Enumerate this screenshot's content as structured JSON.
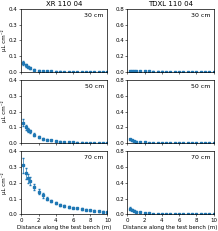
{
  "chart_data": [
    {
      "type": "scatter",
      "title": "XR 110 04",
      "annotation": "30 cm",
      "ylabel": "μL cm⁻²",
      "x": [
        0.25,
        0.5,
        0.75,
        1.0,
        1.5,
        2.0,
        2.5,
        3.0,
        3.5,
        4.0,
        4.5,
        5.0,
        5.5,
        6.0,
        6.5,
        7.0,
        7.5,
        8.0,
        8.5,
        9.0,
        9.5,
        10.0
      ],
      "values": [
        0.055,
        0.042,
        0.033,
        0.025,
        0.014,
        0.009,
        0.006,
        0.004,
        0.003,
        0.002,
        0.002,
        0.001,
        0.001,
        0.001,
        0.001,
        0.001,
        0.001,
        0.001,
        0.001,
        0.001,
        0.001,
        0.001
      ],
      "errors": [
        0.012,
        0.009,
        0.007,
        0.005,
        0.003,
        0.002,
        0.001,
        0.001,
        0.001,
        0.001,
        0.001,
        0.0005,
        0.0005,
        0.0005,
        0.0005,
        0.0005,
        0.0005,
        0.0005,
        0.0005,
        0.0005,
        0.0005,
        0.0005
      ],
      "xlim": [
        0,
        10
      ],
      "xticks": [
        0,
        2,
        4,
        6,
        8,
        10
      ],
      "ylim": [
        0,
        0.4
      ],
      "yticks": [
        {
          "value": 0,
          "label": "0.0"
        },
        0.1,
        0.2,
        0.3,
        0.4
      ],
      "marker": "square",
      "line_style": "none",
      "tick_labels": "y"
    },
    {
      "type": "scatter",
      "title": "TDXL 110 04",
      "annotation": "30 cm",
      "x": [
        0.25,
        0.5,
        0.75,
        1.0,
        1.5,
        2.0,
        2.5,
        3.0,
        3.5,
        4.0,
        4.5,
        5.0,
        5.5,
        6.0,
        6.5,
        7.0,
        7.5,
        8.0,
        8.5,
        9.0,
        9.5,
        10.0
      ],
      "values": [
        0.01,
        0.009,
        0.008,
        0.007,
        0.007,
        0.006,
        0.006,
        0.005,
        0.005,
        0.005,
        0.004,
        0.004,
        0.004,
        0.004,
        0.003,
        0.003,
        0.003,
        0.003,
        0.003,
        0.003,
        0.003,
        0.003
      ],
      "errors": [
        0.002,
        0.002,
        0.001,
        0.001,
        0.001,
        0.001,
        0.001,
        0.001,
        0.001,
        0.001,
        0.001,
        0.001,
        0.001,
        0.001,
        0.001,
        0.001,
        0.001,
        0.001,
        0.001,
        0.001,
        0.001,
        0.001
      ],
      "xlim": [
        0,
        10
      ],
      "xticks": [
        0,
        2,
        4,
        6,
        8,
        10
      ],
      "ylim": [
        0,
        0.8
      ],
      "yticks": [
        {
          "value": 0,
          "label": "0.0"
        },
        0.2,
        0.4,
        0.6,
        0.8
      ],
      "marker": "square",
      "line_style": "none",
      "tick_labels": "y"
    },
    {
      "type": "scatter",
      "annotation": "50 cm",
      "ylabel": "μL cm⁻²",
      "x": [
        0.25,
        0.5,
        0.75,
        1.0,
        1.5,
        2.0,
        2.5,
        3.0,
        3.5,
        4.0,
        4.5,
        5.0,
        5.5,
        6.0,
        6.5,
        7.0,
        7.5,
        8.0,
        8.5,
        9.0,
        9.5,
        10.0
      ],
      "values": [
        0.13,
        0.1,
        0.085,
        0.075,
        0.055,
        0.038,
        0.028,
        0.022,
        0.018,
        0.013,
        0.01,
        0.008,
        0.007,
        0.005,
        0.004,
        0.004,
        0.003,
        0.003,
        0.003,
        0.002,
        0.002,
        0.002
      ],
      "errors": [
        0.022,
        0.016,
        0.013,
        0.011,
        0.009,
        0.006,
        0.005,
        0.004,
        0.003,
        0.002,
        0.002,
        0.002,
        0.001,
        0.001,
        0.001,
        0.001,
        0.001,
        0.001,
        0.001,
        0.001,
        0.001,
        0.001
      ],
      "xlim": [
        0,
        10
      ],
      "xticks": [
        0,
        2,
        4,
        6,
        8,
        10
      ],
      "ylim": [
        0,
        0.4
      ],
      "yticks": [
        {
          "value": 0,
          "label": "0.0"
        },
        0.1,
        0.2,
        0.3,
        0.4
      ],
      "marker": "square",
      "line_style": "none",
      "tick_labels": "y"
    },
    {
      "type": "scatter",
      "annotation": "50 cm",
      "x": [
        0.25,
        0.5,
        0.75,
        1.0,
        1.5,
        2.0,
        2.5,
        3.0,
        3.5,
        4.0,
        4.5,
        5.0,
        5.5,
        6.0,
        6.5,
        7.0,
        7.5,
        8.0,
        8.5,
        9.0,
        9.5,
        10.0
      ],
      "values": [
        0.048,
        0.038,
        0.028,
        0.02,
        0.013,
        0.009,
        0.006,
        0.005,
        0.004,
        0.003,
        0.002,
        0.002,
        0.002,
        0.001,
        0.001,
        0.001,
        0.001,
        0.001,
        0.001,
        0.001,
        0.001,
        0.001
      ],
      "errors": [
        0.009,
        0.007,
        0.005,
        0.004,
        0.003,
        0.002,
        0.001,
        0.001,
        0.001,
        0.001,
        0.001,
        0.001,
        0.001,
        0.0005,
        0.0005,
        0.0005,
        0.0005,
        0.0005,
        0.0005,
        0.0005,
        0.0005,
        0.0005
      ],
      "xlim": [
        0,
        10
      ],
      "xticks": [
        0,
        2,
        4,
        6,
        8,
        10
      ],
      "ylim": [
        0,
        0.8
      ],
      "yticks": [
        {
          "value": 0,
          "label": "0.0"
        },
        0.2,
        0.4,
        0.6,
        0.8
      ],
      "marker": "square",
      "line_style": "none",
      "tick_labels": "y"
    },
    {
      "type": "scatter",
      "annotation": "70 cm",
      "ylabel": "μL cm⁻²",
      "xlabel": "Distance along the test bench (m)",
      "x": [
        0.25,
        0.5,
        0.75,
        1.0,
        1.5,
        2.0,
        2.5,
        3.0,
        3.5,
        4.0,
        4.5,
        5.0,
        5.5,
        6.0,
        6.5,
        7.0,
        7.5,
        8.0,
        8.5,
        9.0,
        9.5,
        10.0
      ],
      "values": [
        0.31,
        0.26,
        0.23,
        0.21,
        0.175,
        0.145,
        0.12,
        0.1,
        0.085,
        0.072,
        0.062,
        0.055,
        0.048,
        0.043,
        0.038,
        0.034,
        0.03,
        0.027,
        0.024,
        0.02,
        0.017,
        0.014
      ],
      "errors": [
        0.045,
        0.035,
        0.028,
        0.024,
        0.019,
        0.015,
        0.013,
        0.011,
        0.009,
        0.008,
        0.007,
        0.006,
        0.006,
        0.005,
        0.005,
        0.004,
        0.004,
        0.004,
        0.003,
        0.003,
        0.003,
        0.002
      ],
      "xlim": [
        0,
        10
      ],
      "xticks": [
        0,
        2,
        4,
        6,
        8,
        10
      ],
      "ylim": [
        0,
        0.4
      ],
      "yticks": [
        {
          "value": 0,
          "label": "0.0"
        },
        0.1,
        0.2,
        0.3,
        0.4
      ],
      "marker": "square",
      "line_style": "none"
    },
    {
      "type": "scatter",
      "annotation": "70 cm",
      "xlabel": "Distance along the test bench (m)",
      "x": [
        0.25,
        0.5,
        0.75,
        1.0,
        1.5,
        2.0,
        2.5,
        3.0,
        3.5,
        4.0,
        4.5,
        5.0,
        5.5,
        6.0,
        6.5,
        7.0,
        7.5,
        8.0,
        8.5,
        9.0,
        9.5,
        10.0
      ],
      "values": [
        0.075,
        0.06,
        0.048,
        0.037,
        0.026,
        0.018,
        0.013,
        0.009,
        0.007,
        0.005,
        0.004,
        0.003,
        0.003,
        0.002,
        0.002,
        0.002,
        0.001,
        0.001,
        0.001,
        0.001,
        0.001,
        0.001
      ],
      "errors": [
        0.013,
        0.01,
        0.008,
        0.006,
        0.005,
        0.003,
        0.002,
        0.002,
        0.001,
        0.001,
        0.001,
        0.001,
        0.001,
        0.001,
        0.001,
        0.001,
        0.001,
        0.001,
        0.0005,
        0.0005,
        0.0005,
        0.0005
      ],
      "xlim": [
        0,
        10
      ],
      "xticks": [
        0,
        2,
        4,
        6,
        8,
        10
      ],
      "ylim": [
        0,
        0.8
      ],
      "yticks": [
        {
          "value": 0,
          "label": "0.0"
        },
        0.2,
        0.4,
        0.6,
        0.8
      ],
      "marker": "square",
      "line_style": "none"
    }
  ]
}
